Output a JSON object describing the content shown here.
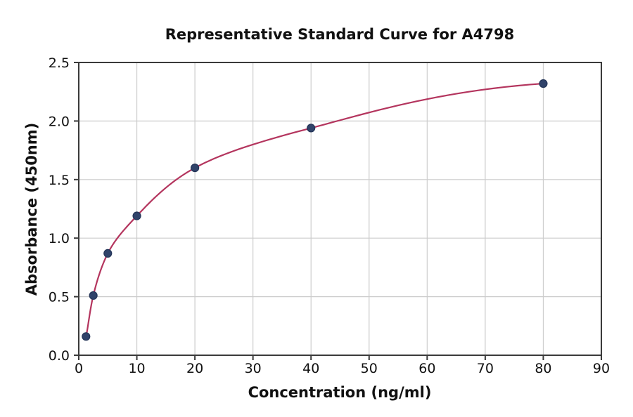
{
  "chart_data": {
    "type": "line",
    "markers": true,
    "title": "Representative Standard Curve for A4798",
    "xlabel": "Concentration (ng/ml)",
    "ylabel": "Absorbance (450nm)",
    "x": [
      1.25,
      2.5,
      5,
      10,
      20,
      40,
      80
    ],
    "y": [
      0.16,
      0.51,
      0.87,
      1.19,
      1.6,
      1.94,
      2.32
    ],
    "xlim": [
      0,
      90
    ],
    "ylim": [
      0,
      2.5
    ],
    "x_ticks": [
      0,
      10,
      20,
      30,
      40,
      50,
      60,
      70,
      80,
      90
    ],
    "x_tick_labels": [
      "0",
      "10",
      "20",
      "30",
      "40",
      "50",
      "60",
      "70",
      "80",
      "90"
    ],
    "y_ticks": [
      0,
      0.5,
      1.0,
      1.5,
      2.0,
      2.5
    ],
    "y_tick_labels": [
      "0.0",
      "0.5",
      "1.0",
      "1.5",
      "2.0",
      "2.5"
    ],
    "grid": true,
    "legend": "none",
    "curve_color": "#b4355e",
    "marker_color": "#30436a",
    "marker_edge_color": "#233457",
    "grid_color": "#cccccc",
    "spine_color": "#3a3a3a",
    "text_color": "#111111"
  }
}
